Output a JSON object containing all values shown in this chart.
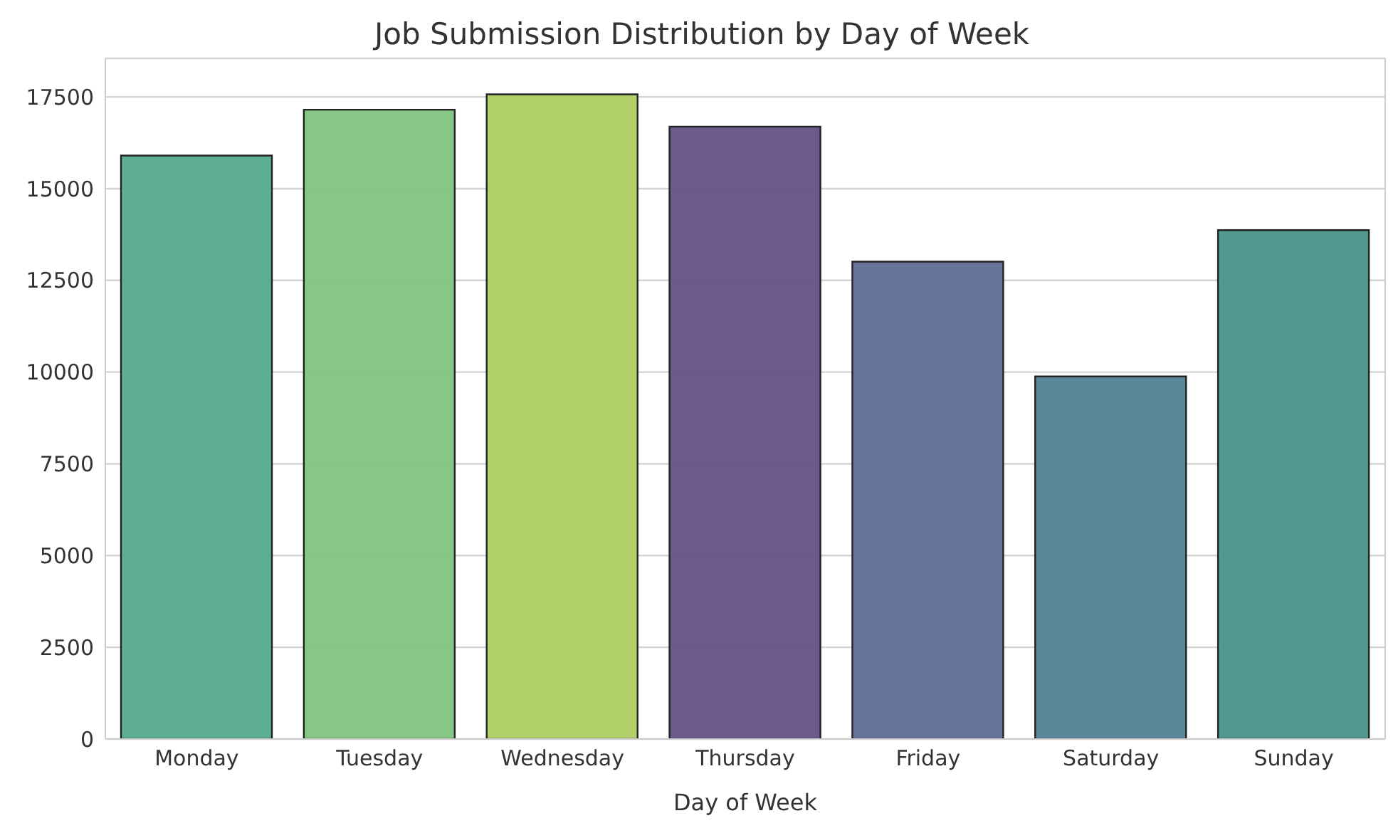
{
  "chart_data": {
    "type": "bar",
    "title": "Job Submission Distribution by Day of Week",
    "xlabel": "Day of Week",
    "categories": [
      "Monday",
      "Tuesday",
      "Wednesday",
      "Thursday",
      "Friday",
      "Saturday",
      "Sunday"
    ],
    "values": [
      15900,
      17150,
      17570,
      16690,
      13010,
      9880,
      13870
    ],
    "colors": [
      "#55ab8c",
      "#80c47f",
      "#afcf62",
      "#645186",
      "#606e96",
      "#538093",
      "#4a9289"
    ],
    "ylim": [
      0,
      18550
    ],
    "yticks": [
      0,
      2500,
      5000,
      7500,
      10000,
      12500,
      15000,
      17500
    ],
    "grid": "y"
  }
}
